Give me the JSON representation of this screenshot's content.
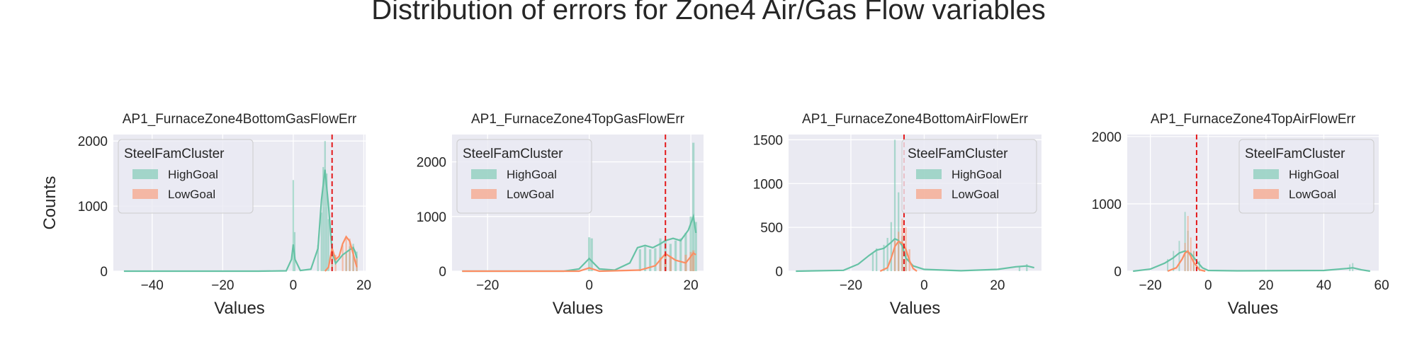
{
  "suptitle": "Distribution of errors for Zone4 Air/Gas Flow variables",
  "colors": {
    "HighGoal": "#66c2a5",
    "LowGoal": "#fc8d62",
    "vline": "#e41a1c",
    "axes_bg": "#eaeaf2",
    "grid": "#ffffff"
  },
  "chart_data": [
    {
      "type": "histogram",
      "title": "AP1_FurnaceZone4BottomGasFlowErr",
      "xlabel": "Values",
      "ylabel": "Counts",
      "xlim": [
        -51,
        20.5
      ],
      "ylim": [
        0,
        2100
      ],
      "xticks": [
        -40,
        -20,
        0,
        20
      ],
      "xtick_labels": [
        "−40",
        "−20",
        "0",
        "20"
      ],
      "yticks": [
        0,
        1000,
        2000
      ],
      "ytick_labels": [
        "0",
        "1000",
        "2000"
      ],
      "vline": 11,
      "legend": {
        "title": "SteelFamCluster",
        "position": "upper left",
        "entries": [
          "HighGoal",
          "LowGoal"
        ]
      },
      "series": [
        {
          "name": "HighGoal",
          "hist": [
            [
              0,
              1400
            ],
            [
              0.4,
              600
            ],
            [
              7,
              400
            ],
            [
              8,
              900
            ],
            [
              8.5,
              1600
            ],
            [
              9,
              2000
            ],
            [
              9.5,
              1500
            ],
            [
              10,
              800
            ],
            [
              11,
              200
            ],
            [
              15,
              300
            ],
            [
              16,
              380
            ],
            [
              17,
              420
            ],
            [
              18,
              300
            ]
          ],
          "kde": [
            [
              -48,
              0
            ],
            [
              -10,
              0
            ],
            [
              -2,
              5
            ],
            [
              -0.5,
              180
            ],
            [
              0,
              410
            ],
            [
              0.5,
              180
            ],
            [
              2,
              10
            ],
            [
              5,
              30
            ],
            [
              7,
              350
            ],
            [
              8,
              1100
            ],
            [
              9,
              1560
            ],
            [
              10,
              1000
            ],
            [
              11,
              300
            ],
            [
              12,
              120
            ],
            [
              14,
              250
            ],
            [
              16,
              330
            ],
            [
              17,
              360
            ],
            [
              17.5,
              300
            ],
            [
              18,
              200
            ]
          ]
        },
        {
          "name": "LowGoal",
          "hist": [
            [
              11,
              380
            ],
            [
              12,
              250
            ],
            [
              14,
              400
            ],
            [
              15,
              520
            ],
            [
              16,
              500
            ],
            [
              17,
              380
            ],
            [
              18,
              200
            ]
          ],
          "kde": [
            [
              9,
              0
            ],
            [
              10,
              60
            ],
            [
              11,
              350
            ],
            [
              12,
              180
            ],
            [
              13,
              230
            ],
            [
              14,
              420
            ],
            [
              15,
              530
            ],
            [
              16,
              460
            ],
            [
              17,
              260
            ],
            [
              18,
              60
            ]
          ]
        }
      ]
    },
    {
      "type": "histogram",
      "title": "AP1_FurnaceZone4TopGasFlowErr",
      "xlabel": "Values",
      "ylabel": "",
      "xlim": [
        -27,
        22.5
      ],
      "ylim": [
        0,
        2500
      ],
      "xticks": [
        -20,
        0,
        20
      ],
      "xtick_labels": [
        "−20",
        "0",
        "20"
      ],
      "yticks": [
        0,
        1000,
        2000
      ],
      "ytick_labels": [
        "0",
        "1000",
        "2000"
      ],
      "vline": 15,
      "legend": {
        "title": "SteelFamCluster",
        "position": "upper left",
        "entries": [
          "HighGoal",
          "LowGoal"
        ]
      },
      "series": [
        {
          "name": "HighGoal",
          "hist": [
            [
              0,
              620
            ],
            [
              0.5,
              600
            ],
            [
              10,
              400
            ],
            [
              11,
              450
            ],
            [
              12,
              400
            ],
            [
              13,
              420
            ],
            [
              14,
              600
            ],
            [
              15,
              580
            ],
            [
              16,
              500
            ],
            [
              17,
              560
            ],
            [
              18,
              600
            ],
            [
              19,
              700
            ],
            [
              20,
              1000
            ],
            [
              20.5,
              2350
            ],
            [
              21,
              900
            ]
          ],
          "kde": [
            [
              -25,
              0
            ],
            [
              -5,
              0
            ],
            [
              -2,
              40
            ],
            [
              0,
              230
            ],
            [
              2,
              40
            ],
            [
              5,
              20
            ],
            [
              8,
              150
            ],
            [
              9.5,
              430
            ],
            [
              11,
              470
            ],
            [
              12.5,
              430
            ],
            [
              14,
              500
            ],
            [
              15,
              560
            ],
            [
              16.5,
              600
            ],
            [
              18,
              560
            ],
            [
              19.5,
              750
            ],
            [
              20.5,
              1000
            ],
            [
              21,
              700
            ]
          ]
        },
        {
          "name": "LowGoal",
          "hist": [
            [
              14,
              250
            ],
            [
              15,
              300
            ],
            [
              16,
              280
            ],
            [
              19,
              300
            ],
            [
              20,
              350
            ],
            [
              20.5,
              380
            ]
          ],
          "kde": [
            [
              -25,
              0
            ],
            [
              -2,
              0
            ],
            [
              0,
              60
            ],
            [
              2,
              0
            ],
            [
              10,
              20
            ],
            [
              13,
              100
            ],
            [
              15,
              320
            ],
            [
              17,
              200
            ],
            [
              19,
              150
            ],
            [
              20.5,
              330
            ],
            [
              21,
              300
            ]
          ]
        }
      ]
    },
    {
      "type": "histogram",
      "title": "AP1_FurnaceZone4BottomAirFlowErr",
      "xlabel": "Values",
      "ylabel": "",
      "xlim": [
        -37,
        32
      ],
      "ylim": [
        0,
        1560
      ],
      "xticks": [
        -20,
        0,
        20
      ],
      "xtick_labels": [
        "−20",
        "0",
        "20"
      ],
      "yticks": [
        0,
        500,
        1000,
        1500
      ],
      "ytick_labels": [
        "0",
        "500",
        "1000",
        "1500"
      ],
      "vline": -5.5,
      "legend": {
        "title": "SteelFamCluster",
        "position": "upper right",
        "entries": [
          "HighGoal",
          "LowGoal"
        ]
      },
      "series": [
        {
          "name": "HighGoal",
          "hist": [
            [
              -14,
              200
            ],
            [
              -13,
              260
            ],
            [
              -11,
              300
            ],
            [
              -10,
              380
            ],
            [
              -9,
              560
            ],
            [
              -8,
              1500
            ],
            [
              -7,
              900
            ],
            [
              -6,
              400
            ],
            [
              -5,
              250
            ],
            [
              26,
              60
            ],
            [
              28,
              80
            ]
          ],
          "kde": [
            [
              -35,
              0
            ],
            [
              -22,
              10
            ],
            [
              -18,
              80
            ],
            [
              -15,
              180
            ],
            [
              -13,
              240
            ],
            [
              -11,
              260
            ],
            [
              -9,
              330
            ],
            [
              -8,
              370
            ],
            [
              -7,
              350
            ],
            [
              -6,
              290
            ],
            [
              -5,
              150
            ],
            [
              -3,
              60
            ],
            [
              0,
              20
            ],
            [
              10,
              5
            ],
            [
              20,
              20
            ],
            [
              25,
              50
            ],
            [
              28,
              60
            ],
            [
              30,
              40
            ]
          ]
        },
        {
          "name": "LowGoal",
          "hist": [
            [
              -8,
              350
            ],
            [
              -7,
              450
            ],
            [
              -6,
              600
            ],
            [
              -5,
              500
            ],
            [
              -4,
              250
            ]
          ],
          "kde": [
            [
              -12,
              0
            ],
            [
              -10,
              40
            ],
            [
              -9,
              150
            ],
            [
              -8,
              280
            ],
            [
              -7,
              340
            ],
            [
              -6,
              320
            ],
            [
              -5,
              250
            ],
            [
              -4,
              120
            ],
            [
              -3,
              30
            ],
            [
              -2,
              0
            ]
          ]
        }
      ]
    },
    {
      "type": "histogram",
      "title": "AP1_FurnaceZone4TopAirFlowErr",
      "xlabel": "Values",
      "ylabel": "",
      "xlim": [
        -28,
        59
      ],
      "ylim": [
        0,
        2030
      ],
      "xticks": [
        -20,
        0,
        20,
        40,
        60
      ],
      "xtick_labels": [
        "−20",
        "0",
        "20",
        "40",
        "60"
      ],
      "yticks": [
        0,
        1000,
        2000
      ],
      "ytick_labels": [
        "0",
        "1000",
        "2000"
      ],
      "vline": -4,
      "legend": {
        "title": "SteelFamCluster",
        "position": "upper right",
        "entries": [
          "HighGoal",
          "LowGoal"
        ]
      },
      "series": [
        {
          "name": "HighGoal",
          "hist": [
            [
              -14,
              180
            ],
            [
              -12,
              300
            ],
            [
              -10,
              450
            ],
            [
              -8,
              880
            ],
            [
              -7,
              600
            ],
            [
              -5,
              300
            ],
            [
              -3,
              150
            ],
            [
              49,
              100
            ],
            [
              50,
              120
            ]
          ],
          "kde": [
            [
              -26,
              0
            ],
            [
              -20,
              30
            ],
            [
              -15,
              120
            ],
            [
              -12,
              200
            ],
            [
              -10,
              270
            ],
            [
              -8,
              300
            ],
            [
              -6,
              260
            ],
            [
              -4,
              150
            ],
            [
              -2,
              50
            ],
            [
              0,
              10
            ],
            [
              10,
              5
            ],
            [
              40,
              10
            ],
            [
              48,
              40
            ],
            [
              50,
              50
            ],
            [
              53,
              20
            ],
            [
              56,
              0
            ]
          ]
        },
        {
          "name": "LowGoal",
          "hist": [
            [
              -8,
              420
            ],
            [
              -7,
              820
            ],
            [
              -6,
              500
            ],
            [
              -5,
              300
            ]
          ],
          "kde": [
            [
              -14,
              0
            ],
            [
              -11,
              50
            ],
            [
              -9,
              180
            ],
            [
              -8,
              270
            ],
            [
              -7,
              300
            ],
            [
              -6,
              220
            ],
            [
              -5,
              130
            ],
            [
              -3,
              20
            ],
            [
              -1,
              0
            ]
          ]
        }
      ]
    }
  ]
}
